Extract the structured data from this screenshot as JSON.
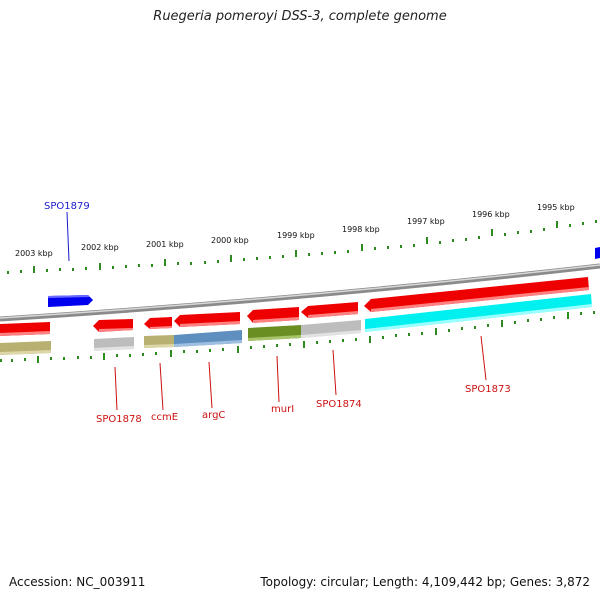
{
  "title": "Ruegeria pomeroyi DSS-3, complete genome",
  "footer": {
    "accession": "Accession: NC_003911",
    "summary": "Topology: circular; Length: 4,109,442 bp; Genes: 3,872"
  },
  "colors": {
    "forward_gene": "#0000ee",
    "reverse_gene": "#ee0000",
    "backbone": "#8a8a8a",
    "ticks": "#2e8b20",
    "label_forward": "#1a1acc",
    "label_reverse": "#cc1111",
    "cog_olive": "#b8b070",
    "cog_grey": "#bdbdbd",
    "cog_steel": "#5f8fbf",
    "cog_green": "#6b8e23",
    "cog_cyan": "#00f0f0"
  },
  "scale_labels": [
    "2003 kbp",
    "2002 kbp",
    "2001 kbp",
    "2000 kbp",
    "1999 kbp",
    "1998 kbp",
    "1997 kbp",
    "1996 kbp",
    "1995 kbp"
  ],
  "gene_labels": {
    "spo1879": "SPO1879",
    "spo1878": "SPO1878",
    "ccmE": "ccmE",
    "argC": "argC",
    "murI": "murI",
    "spo1874": "SPO1874",
    "spo1873": "SPO1873"
  }
}
